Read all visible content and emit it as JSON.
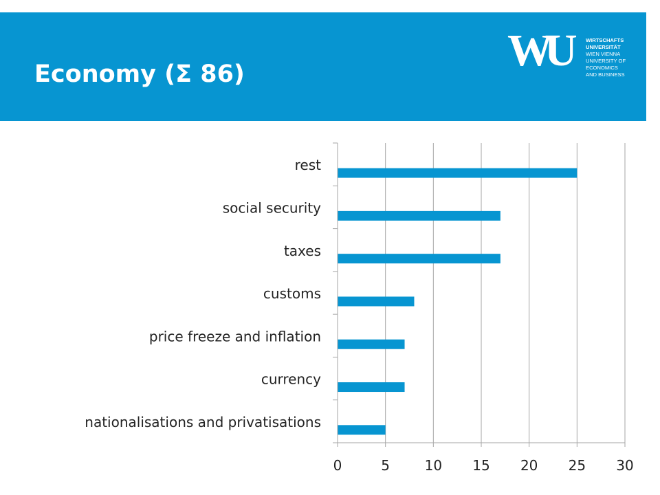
{
  "header": {
    "title": "Economy (Σ 86)"
  },
  "logo": {
    "mark": "WU",
    "lines": [
      "WIRTSCHAFTS",
      "UNIVERSITÄT",
      "WIEN VIENNA",
      "UNIVERSITY OF",
      "ECONOMICS",
      "AND BUSINESS"
    ]
  },
  "colors": {
    "header_bg": "#0795d1",
    "bar": "#0795d1",
    "grid": "#a6a6a6"
  },
  "chart_data": {
    "type": "bar",
    "orientation": "horizontal",
    "title": "Economy (Σ 86)",
    "categories": [
      "rest",
      "social security",
      "taxes",
      "customs",
      "price freeze and inflation",
      "currency",
      "nationalisations and privatisations"
    ],
    "values": [
      25,
      17,
      17,
      8,
      7,
      7,
      5
    ],
    "xlim": [
      0,
      30
    ],
    "xticks": [
      0,
      5,
      10,
      15,
      20,
      25,
      30
    ],
    "xlabel": "",
    "ylabel": "",
    "grid": true,
    "legend": "none"
  }
}
